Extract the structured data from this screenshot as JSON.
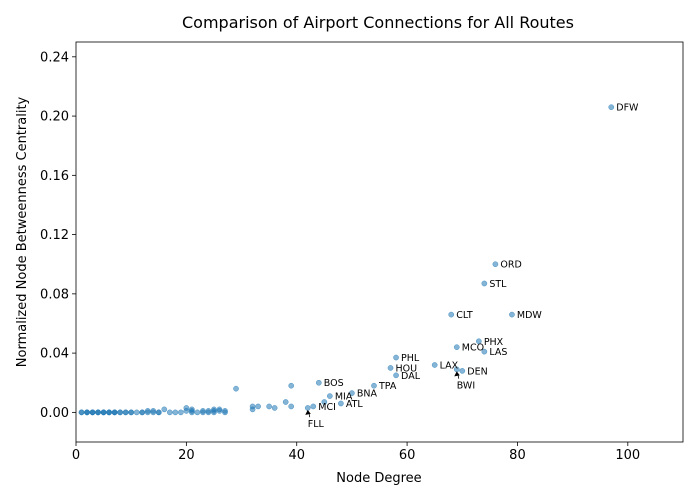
{
  "chart_data": {
    "type": "scatter",
    "title": "Comparison of Airport Connections for All Routes",
    "xlabel": "Node Degree",
    "ylabel": "Normalized Node Betweenness Centrality",
    "xlim": [
      0,
      110
    ],
    "ylim": [
      -0.02,
      0.25
    ],
    "xticks": [
      0,
      20,
      40,
      60,
      80,
      100
    ],
    "yticks": [
      0.0,
      0.04,
      0.08,
      0.12,
      0.16,
      0.2,
      0.24
    ],
    "xtick_labels": [
      "0",
      "20",
      "40",
      "60",
      "80",
      "100"
    ],
    "ytick_labels": [
      "0.00",
      "0.04",
      "0.08",
      "0.12",
      "0.16",
      "0.20",
      "0.24"
    ],
    "grid": false,
    "point_color": "#1f77b4",
    "points": [
      [
        1,
        0
      ],
      [
        1,
        0
      ],
      [
        2,
        0
      ],
      [
        2,
        0
      ],
      [
        2,
        0
      ],
      [
        3,
        0
      ],
      [
        3,
        0
      ],
      [
        3,
        0
      ],
      [
        4,
        0
      ],
      [
        4,
        0
      ],
      [
        4,
        0
      ],
      [
        5,
        0
      ],
      [
        5,
        0
      ],
      [
        5,
        0
      ],
      [
        6,
        0
      ],
      [
        6,
        0
      ],
      [
        6,
        0
      ],
      [
        7,
        0
      ],
      [
        7,
        0
      ],
      [
        7,
        0
      ],
      [
        8,
        0
      ],
      [
        8,
        0
      ],
      [
        9,
        0
      ],
      [
        9,
        0
      ],
      [
        10,
        0
      ],
      [
        10,
        0
      ],
      [
        11,
        0
      ],
      [
        12,
        0
      ],
      [
        12,
        0
      ],
      [
        13,
        0
      ],
      [
        13,
        0.001
      ],
      [
        14,
        0
      ],
      [
        14,
        0.001
      ],
      [
        15,
        0
      ],
      [
        15,
        0
      ],
      [
        16,
        0.002
      ],
      [
        17,
        0
      ],
      [
        18,
        0
      ],
      [
        19,
        0
      ],
      [
        20,
        0.001
      ],
      [
        20,
        0.003
      ],
      [
        21,
        0
      ],
      [
        21,
        0.002
      ],
      [
        21,
        0.001
      ],
      [
        22,
        0
      ],
      [
        23,
        0
      ],
      [
        23,
        0.001
      ],
      [
        24,
        0
      ],
      [
        24,
        0.001
      ],
      [
        25,
        0
      ],
      [
        25,
        0.002
      ],
      [
        25,
        0.001
      ],
      [
        26,
        0.001
      ],
      [
        26,
        0.002
      ],
      [
        27,
        0
      ],
      [
        27,
        0.001
      ],
      [
        29,
        0.016
      ],
      [
        32,
        0.004
      ],
      [
        32,
        0.002
      ],
      [
        33,
        0.004
      ],
      [
        35,
        0.004
      ],
      [
        36,
        0.003
      ],
      [
        38,
        0.007
      ],
      [
        39,
        0.018
      ],
      [
        39,
        0.004
      ],
      [
        42,
        0.003
      ],
      [
        43,
        0.004
      ],
      [
        44,
        0.02
      ],
      [
        45,
        0.007
      ],
      [
        46,
        0.011
      ],
      [
        48,
        0.006
      ],
      [
        50,
        0.013
      ],
      [
        54,
        0.018
      ],
      [
        57,
        0.03
      ],
      [
        58,
        0.037
      ],
      [
        58,
        0.025
      ],
      [
        65,
        0.032
      ],
      [
        68,
        0.066
      ],
      [
        69,
        0.044
      ],
      [
        69,
        0.029
      ],
      [
        70,
        0.028
      ],
      [
        73,
        0.048
      ],
      [
        74,
        0.087
      ],
      [
        74,
        0.041
      ],
      [
        76,
        0.1
      ],
      [
        79,
        0.066
      ],
      [
        97,
        0.206
      ]
    ],
    "annotations": [
      {
        "label": "DFW",
        "x": 97,
        "y": 0.206
      },
      {
        "label": "ORD",
        "x": 76,
        "y": 0.1
      },
      {
        "label": "STL",
        "x": 74,
        "y": 0.087
      },
      {
        "label": "CLT",
        "x": 68,
        "y": 0.066
      },
      {
        "label": "MDW",
        "x": 79,
        "y": 0.066
      },
      {
        "label": "PHX",
        "x": 73,
        "y": 0.048
      },
      {
        "label": "MCO",
        "x": 69,
        "y": 0.044
      },
      {
        "label": "LAS",
        "x": 74,
        "y": 0.041
      },
      {
        "label": "PHL",
        "x": 58,
        "y": 0.037
      },
      {
        "label": "LAX",
        "x": 65,
        "y": 0.032
      },
      {
        "label": "HOU",
        "x": 57,
        "y": 0.03
      },
      {
        "label": "DEN",
        "x": 70,
        "y": 0.028
      },
      {
        "label": "DAL",
        "x": 58,
        "y": 0.025
      },
      {
        "label": "BOS",
        "x": 44,
        "y": 0.02
      },
      {
        "label": "TPA",
        "x": 54,
        "y": 0.018
      },
      {
        "label": "BNA",
        "x": 50,
        "y": 0.013
      },
      {
        "label": "MIA",
        "x": 46,
        "y": 0.011
      },
      {
        "label": "ATL",
        "x": 48,
        "y": 0.006
      },
      {
        "label": "MCI",
        "x": 43,
        "y": 0.004
      },
      {
        "label": "BWI",
        "x": 69,
        "y": 0.029,
        "arrow": true,
        "text_x": 69,
        "text_y": 0.016
      },
      {
        "label": "FLL",
        "x": 42,
        "y": 0.003,
        "arrow": true,
        "text_x": 42,
        "text_y": -0.01
      }
    ]
  }
}
